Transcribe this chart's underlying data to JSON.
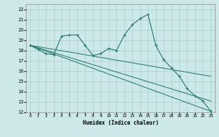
{
  "xlabel": "Humidex (Indice chaleur)",
  "bg_color": "#cce8e8",
  "line_color": "#2e7d72",
  "grid_color": "#aacccc",
  "xlim": [
    -0.5,
    23.5
  ],
  "ylim": [
    12,
    22.5
  ],
  "yticks": [
    12,
    13,
    14,
    15,
    16,
    17,
    18,
    19,
    20,
    21,
    22
  ],
  "xticks": [
    0,
    1,
    2,
    3,
    4,
    5,
    6,
    7,
    8,
    9,
    10,
    11,
    12,
    13,
    14,
    15,
    16,
    17,
    18,
    19,
    20,
    21,
    22,
    23
  ],
  "series1_x": [
    0,
    1,
    2,
    3,
    4,
    5,
    6,
    7,
    8,
    9,
    10,
    11,
    12,
    13,
    14,
    15,
    16,
    17,
    18,
    19,
    20,
    21,
    22,
    23
  ],
  "series1_y": [
    18.5,
    18.1,
    17.7,
    17.6,
    19.4,
    19.5,
    19.5,
    18.5,
    17.5,
    17.7,
    18.2,
    18.0,
    19.5,
    20.5,
    21.1,
    21.5,
    18.5,
    17.1,
    16.3,
    15.5,
    14.3,
    13.6,
    13.1,
    12.1
  ],
  "line2_x": [
    0,
    23
  ],
  "line2_y": [
    18.5,
    12.1
  ],
  "line3_x": [
    0,
    23
  ],
  "line3_y": [
    18.5,
    13.1
  ],
  "line4_x": [
    0,
    23
  ],
  "line4_y": [
    18.5,
    15.5
  ]
}
